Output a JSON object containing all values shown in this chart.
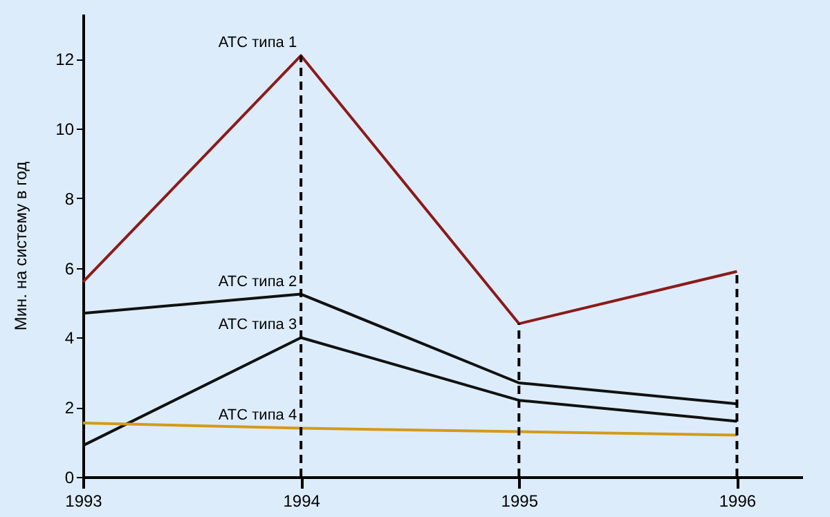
{
  "chart_data": {
    "type": "line",
    "ylabel": "Мин. на систему в год",
    "x": [
      1993,
      1994,
      1995,
      1996
    ],
    "xlim": [
      1993,
      1996.3
    ],
    "xticks": [
      1993,
      1994,
      1995,
      1996
    ],
    "ylim": [
      0,
      13.3
    ],
    "yticks": [
      0,
      2,
      4,
      6,
      8,
      10,
      12
    ],
    "series": [
      {
        "name": "АТС типа 1",
        "color": "#8b1a1a",
        "values": [
          5.6,
          12.1,
          4.4,
          5.9
        ]
      },
      {
        "name": "АТС типа 2",
        "color": "#111111",
        "values": [
          4.7,
          5.25,
          2.7,
          2.1
        ]
      },
      {
        "name": "АТС типа 3",
        "color": "#111111",
        "values": [
          0.9,
          4.0,
          2.2,
          1.6
        ]
      },
      {
        "name": "АТС типа 4",
        "color": "#d49a17",
        "values": [
          1.55,
          1.4,
          1.3,
          1.2
        ]
      }
    ],
    "ref_lines": [
      {
        "axis": "x",
        "value": 1994,
        "line_style": "dashed"
      },
      {
        "axis": "x",
        "value": 1995,
        "line_style": "dashed"
      },
      {
        "axis": "x",
        "value": 1996,
        "line_style": "dashed"
      }
    ],
    "grid": false,
    "legend": false,
    "marker": "none",
    "line_style": "solid"
  }
}
